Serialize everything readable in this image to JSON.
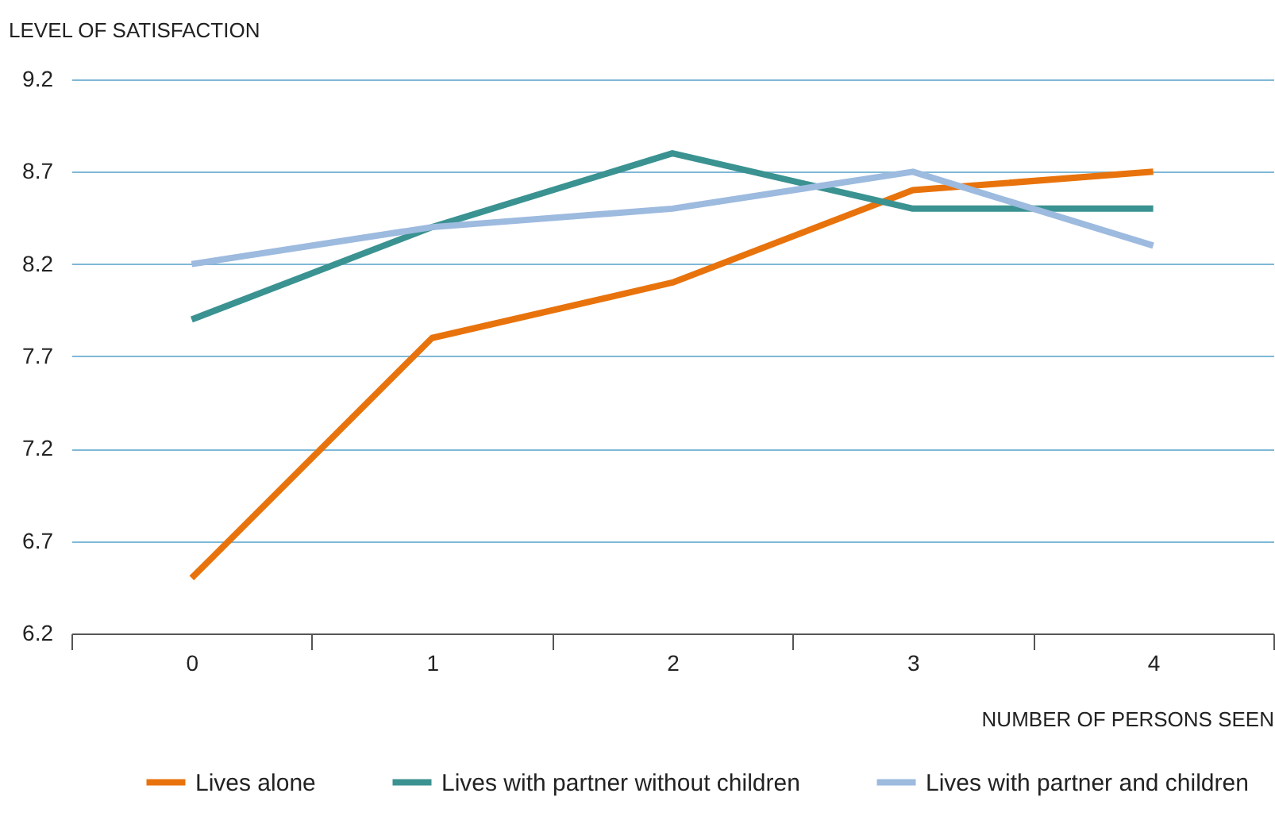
{
  "chart_data": {
    "type": "line",
    "ylabel": "LEVEL OF SATISFACTION",
    "xlabel": "NUMBER OF PERSONS SEEN",
    "categories": [
      "0",
      "1",
      "2",
      "3",
      "4"
    ],
    "ylim": [
      6.2,
      9.2
    ],
    "yticks": [
      6.2,
      6.7,
      7.2,
      7.7,
      8.2,
      8.7,
      9.2
    ],
    "grid": "y",
    "legend": "bottom",
    "line_style": "solid",
    "marker": "none",
    "series": [
      {
        "name": "Lives alone",
        "color": "#e8730c",
        "values": [
          6.5,
          7.8,
          8.1,
          8.6,
          8.7
        ]
      },
      {
        "name": "Lives with partner without children",
        "color": "#3a9291",
        "values": [
          7.9,
          8.4,
          8.8,
          8.5,
          8.5
        ]
      },
      {
        "name": "Lives with partner and children",
        "color": "#9dbadf",
        "values": [
          8.2,
          8.4,
          8.5,
          8.7,
          8.3
        ]
      }
    ]
  }
}
